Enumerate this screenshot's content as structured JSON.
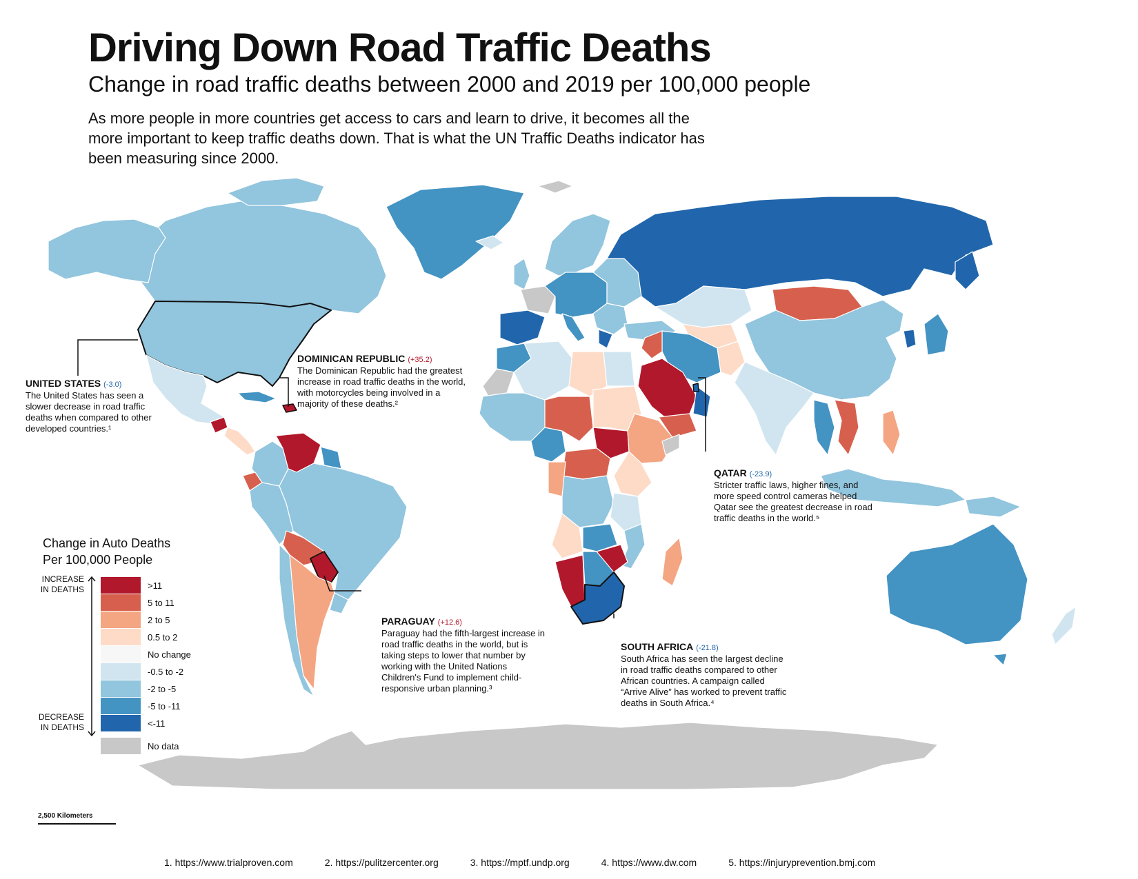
{
  "title": "Driving Down Road Traffic Deaths",
  "subtitle": "Change in road traffic deaths between 2000 and 2019 per 100,000 people",
  "intro": "As more people in more countries get access to cars and learn to drive, it becomes all the more important to keep traffic deaths down. That is what the UN Traffic Deaths indicator has been measuring since 2000.",
  "colors": {
    "gt11": "#b2182b",
    "5to11": "#d6604d",
    "2to5": "#f4a582",
    "05to2": "#fddbc7",
    "none": "#f7f7f7",
    "m05to2": "#d1e5f0",
    "m2to5": "#92c5de",
    "m5to11": "#4393c3",
    "lt11": "#2166ac",
    "nodata": "#c8c8c8",
    "ocean": "#ffffff",
    "border": "#ffffff"
  },
  "callouts": {
    "united_states": {
      "name": "UNITED STATES",
      "value": "(-3.0)",
      "text": "The United States has seen a slower decrease in road traffic deaths when compared to other developed countries.¹"
    },
    "dominican_republic": {
      "name": "DOMINICAN REPUBLIC",
      "value": "(+35.2)",
      "text": "The Dominican Republic had the greatest increase in road traffic deaths in the world, with motorcycles being involved in a majority of these deaths.²"
    },
    "qatar": {
      "name": "QATAR",
      "value": "(-23.9)",
      "text": "Stricter traffic laws, higher fines, and more speed control cameras helped Qatar see the greatest decrease in road traffic deaths in the world.⁵"
    },
    "paraguay": {
      "name": "PARAGUAY",
      "value": "(+12.6)",
      "text": "Paraguay had the fifth-largest increase in road traffic deaths in the world, but is taking steps to lower that number by working with the United Nations Children's Fund to implement child-responsive urban planning.³"
    },
    "south_africa": {
      "name": "SOUTH AFRICA",
      "value": "(-21.8)",
      "text": "South Africa has seen the largest decline in road traffic deaths compared to other African countries. A campaign called “Arrive Alive” has worked to prevent traffic deaths in South Africa.⁴"
    }
  },
  "legend": {
    "title_line1": "Change in Auto Deaths",
    "title_line2": "Per 100,000 People",
    "increase_line1": "INCREASE",
    "increase_line2": "IN DEATHS",
    "decrease_line1": "DECREASE",
    "decrease_line2": "IN DEATHS",
    "classes": [
      {
        "label": ">11",
        "color": "#b2182b"
      },
      {
        "label": "5 to 11",
        "color": "#d6604d"
      },
      {
        "label": "2 to 5",
        "color": "#f4a582"
      },
      {
        "label": "0.5 to 2",
        "color": "#fddbc7"
      },
      {
        "label": "No change",
        "color": "#f7f7f7"
      },
      {
        "label": "-0.5 to -2",
        "color": "#d1e5f0"
      },
      {
        "label": "-2 to -5",
        "color": "#92c5de"
      },
      {
        "label": "-5 to -11",
        "color": "#4393c3"
      },
      {
        "label": "<-11",
        "color": "#2166ac"
      },
      {
        "label": "No data",
        "color": "#c8c8c8"
      }
    ]
  },
  "scale_label": "2,500 Kilometers",
  "sources": [
    "1. https://www.trialproven.com",
    "2. https://pulitzercenter.org",
    "3. https://mptf.undp.org",
    "4. https://www.dw.com",
    "5. https://injuryprevention.bmj.com"
  ]
}
